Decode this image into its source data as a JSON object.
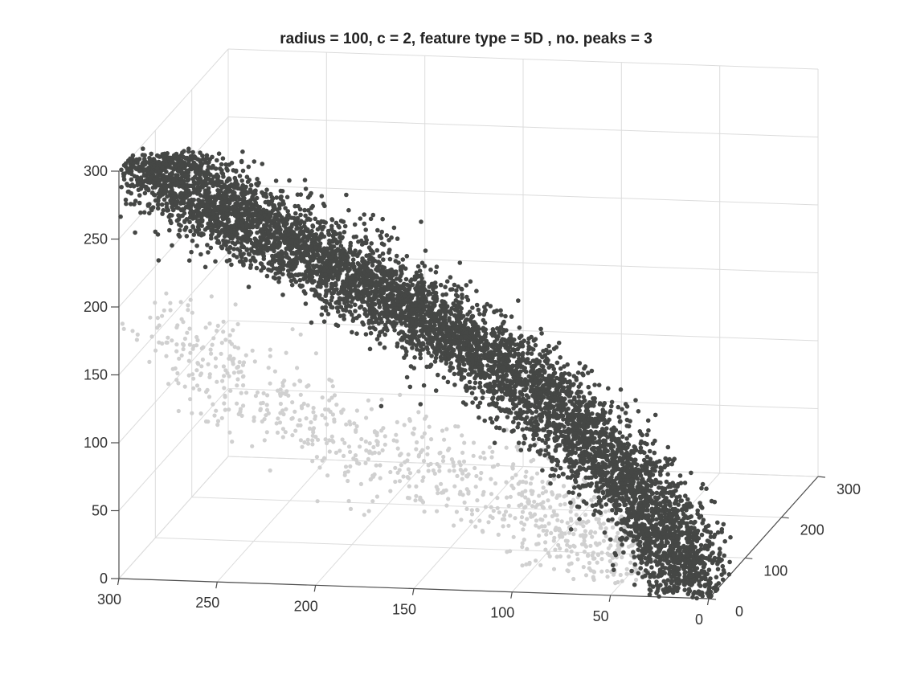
{
  "chart_data": {
    "type": "scatter",
    "title": "radius = 100, c = 2, feature type = 5D , no. peaks = 3",
    "xlabel": "",
    "ylabel": "",
    "zlabel": "",
    "xlim": [
      0,
      300
    ],
    "ylim": [
      0,
      300
    ],
    "zlim": [
      0,
      300
    ],
    "x_ticks": [
      "300",
      "250",
      "200",
      "150",
      "100",
      "50",
      "0"
    ],
    "y_ticks": [
      "0",
      "100",
      "200",
      "300"
    ],
    "z_ticks": [
      "0",
      "50",
      "100",
      "150",
      "200",
      "250",
      "300"
    ],
    "grid": true,
    "view": "3d",
    "series": [
      {
        "color": "#d0d0d0",
        "description_points": [
          {
            "x": 280,
            "y": 20,
            "z": 180
          },
          {
            "x": 230,
            "y": 40,
            "z": 120
          },
          {
            "x": 180,
            "y": 60,
            "z": 80
          },
          {
            "x": 120,
            "y": 80,
            "z": 50
          },
          {
            "x": 80,
            "y": 60,
            "z": 30
          },
          {
            "x": 40,
            "y": 40,
            "z": 15
          }
        ]
      },
      {
        "color": "#454745",
        "description_points": [
          {
            "x": 290,
            "y": 20,
            "z": 300
          },
          {
            "x": 250,
            "y": 60,
            "z": 250
          },
          {
            "x": 200,
            "y": 100,
            "z": 200
          },
          {
            "x": 150,
            "y": 120,
            "z": 150
          },
          {
            "x": 100,
            "y": 120,
            "z": 100
          },
          {
            "x": 50,
            "y": 80,
            "z": 50
          },
          {
            "x": 10,
            "y": 20,
            "z": 5
          }
        ]
      }
    ]
  }
}
